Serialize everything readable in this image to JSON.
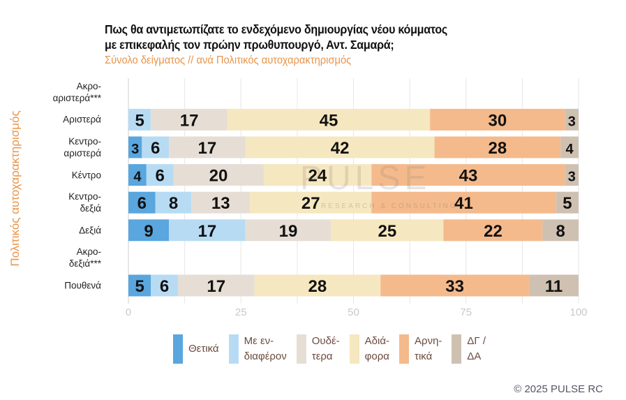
{
  "title_line1": "Πως θα αντιμετωπίζατε το ενδεχόμενο δημιουργίας νέου κόμματος",
  "title_line2": "με επικεφαλής τον πρώην πρωθυπουργό, Αντ. Σαμαρά;",
  "subtitle": "Σύνολο δείγματος // ανά Πολιτικός αυτοχαρακτηρισμός",
  "watermark": "PULSE",
  "watermark_sub": "RESEARCH & CONSULTING",
  "copyright": "© 2025 PULSE RC",
  "chart_data": {
    "type": "bar",
    "orientation": "horizontal",
    "stacked": true,
    "ylabel": "Πολιτικός αυτοχαρακτηρισμός",
    "xlim": [
      0,
      100
    ],
    "xticks": [
      "0",
      "25",
      "50",
      "75",
      "100"
    ],
    "grid": true,
    "legend_position": "bottom",
    "categories": [
      "Ακρο-\nαριστερά***",
      "Αριστερά",
      "Κεντρο-\nαριστερά",
      "Κέντρο",
      "Κεντρο-\nδεξιά",
      "Δεξιά",
      "Ακρο-\nδεξιά***",
      "Πουθενά"
    ],
    "series": [
      {
        "name": "Θετικά",
        "legend": "Θετικά",
        "color": "#5aa6de",
        "values": [
          null,
          0,
          3,
          4,
          6,
          9,
          null,
          5
        ]
      },
      {
        "name": "Με ενδιαφέρον",
        "legend": "Με εν-\nδιαφέρον",
        "color": "#b8dbf4",
        "values": [
          null,
          5,
          6,
          6,
          8,
          17,
          null,
          6
        ]
      },
      {
        "name": "Ουδέτερα",
        "legend": "Ουδέ-\nτερα",
        "color": "#e6ded5",
        "values": [
          null,
          17,
          17,
          20,
          13,
          19,
          null,
          17
        ]
      },
      {
        "name": "Αδιάφορα",
        "legend": "Αδιά-\nφορα",
        "color": "#f5e7bf",
        "values": [
          null,
          45,
          42,
          24,
          27,
          25,
          null,
          28
        ]
      },
      {
        "name": "Αρνητικά",
        "legend": "Αρνη-\nτικά",
        "color": "#f4ba8c",
        "values": [
          null,
          30,
          28,
          43,
          41,
          22,
          null,
          33
        ]
      },
      {
        "name": "ΔΓ / ΔΑ",
        "legend": "ΔΓ /\nΔΑ",
        "color": "#cfc1b2",
        "values": [
          null,
          3,
          4,
          3,
          5,
          8,
          null,
          11
        ]
      }
    ]
  }
}
